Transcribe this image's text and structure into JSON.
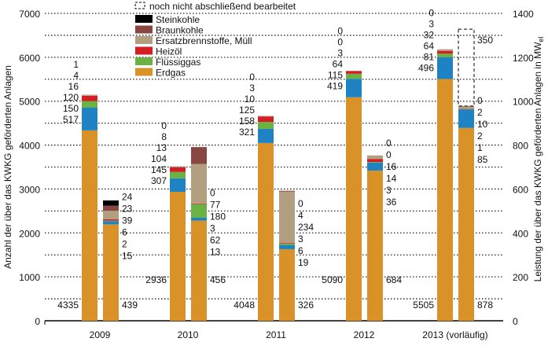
{
  "chart_data": {
    "type": "bar",
    "stacked": true,
    "categories": [
      "2009",
      "2010",
      "2011",
      "2012",
      "2013"
    ],
    "category_suffix": {
      "2013": "(vorläufig)"
    },
    "ylabel_left": "Anzahl der über das KWKG geförderten Anlagen",
    "ylabel_right": "Leistung  der über das KWKG geförderten Anlagen in MW",
    "ylabel_right_subscript": "el",
    "ylim_left": [
      0,
      7000
    ],
    "ylim_right": [
      0,
      1400
    ],
    "yticks_left": [
      "0",
      "1000",
      "2000",
      "3000",
      "4000",
      "5000",
      "6000",
      "7000"
    ],
    "yticks_right": [
      "0",
      "200",
      "400",
      "600",
      "800",
      "1000",
      "1200",
      "1400"
    ],
    "grid": "dotted horizontal every 500",
    "legend_placement": "top-center",
    "pending_label": "noch nicht abschließend bearbeitet",
    "series": [
      {
        "name": "Erdgas",
        "color": "#d89228",
        "count": [
          4335,
          2936,
          4048,
          5090,
          5505
        ],
        "capacity": [
          439,
          456,
          326,
          684,
          878
        ]
      },
      {
        "name": "",
        "color": "#1f82c3",
        "count": [
          517,
          307,
          321,
          419,
          496
        ],
        "capacity": [
          15,
          13,
          19,
          36,
          85
        ]
      },
      {
        "name": "Flüssiggas",
        "color": "#6ab244",
        "count": [
          150,
          145,
          158,
          115,
          81
        ],
        "capacity": [
          2,
          62,
          6,
          3,
          1
        ]
      },
      {
        "name": "Heizöl",
        "color": "#d21f26",
        "count": [
          120,
          104,
          125,
          64,
          64
        ],
        "capacity": [
          6,
          3,
          3,
          14,
          2
        ]
      },
      {
        "name": "Ersatzbrennstoffe, Müll",
        "color": "#b19f80",
        "count": [
          16,
          13,
          10,
          3,
          32
        ],
        "capacity": [
          39,
          180,
          234,
          16,
          10
        ]
      },
      {
        "name": "Braunkohle",
        "color": "#8a4640",
        "count": [
          4,
          8,
          3,
          0,
          3
        ],
        "capacity": [
          23,
          77,
          4,
          0,
          2
        ]
      },
      {
        "name": "Steinkohle",
        "color": "#000000",
        "count": [
          1,
          0,
          0,
          0,
          0
        ],
        "capacity": [
          24,
          0,
          0,
          0,
          0
        ]
      }
    ],
    "pending_capacity": {
      "2013": 350
    }
  }
}
